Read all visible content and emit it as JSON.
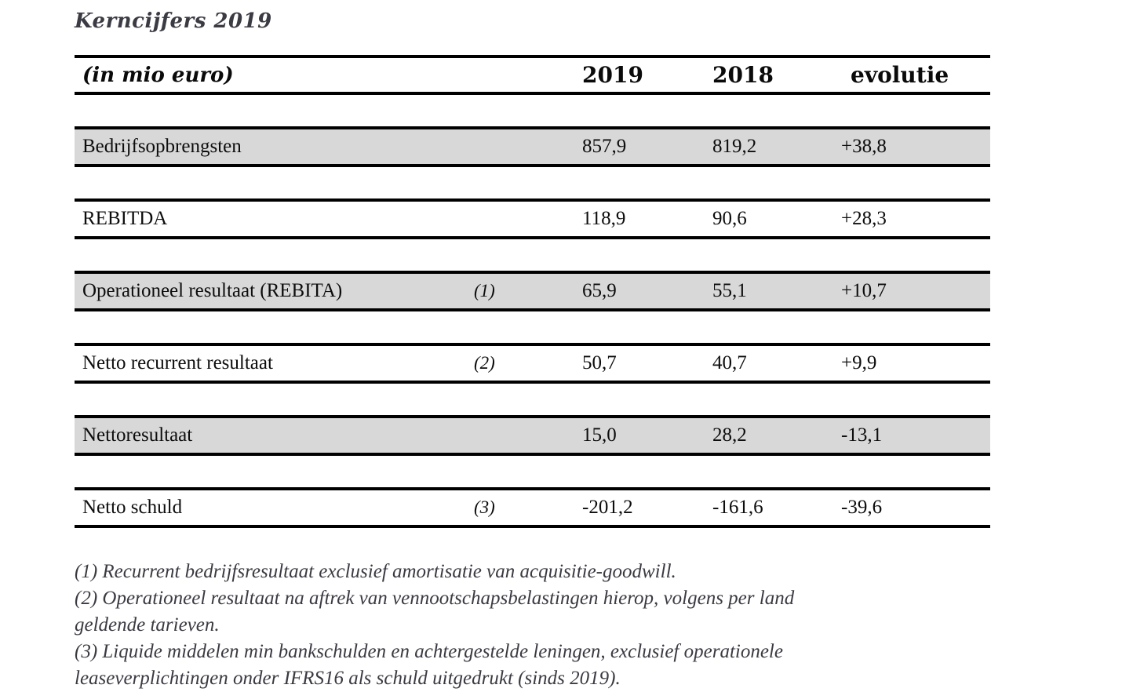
{
  "title": "Kerncijfers 2019",
  "table": {
    "unit_label": "(in mio euro)",
    "columns": [
      "2019",
      "2018",
      "evolutie"
    ],
    "rows": [
      {
        "label": "Bedrijfsopbrengsten",
        "ref": "",
        "y2019": "857,9",
        "y2018": "819,2",
        "evolutie": "+38,8",
        "shaded": true
      },
      {
        "label": "REBITDA",
        "ref": "",
        "y2019": "118,9",
        "y2018": "90,6",
        "evolutie": "+28,3",
        "shaded": false
      },
      {
        "label": "Operationeel resultaat (REBITA)",
        "ref": "(1)",
        "y2019": "65,9",
        "y2018": "55,1",
        "evolutie": "+10,7",
        "shaded": true
      },
      {
        "label": "Netto recurrent resultaat",
        "ref": "(2)",
        "y2019": "50,7",
        "y2018": "40,7",
        "evolutie": "+9,9",
        "shaded": false
      },
      {
        "label": "Nettoresultaat",
        "ref": "",
        "y2019": "15,0",
        "y2018": "28,2",
        "evolutie": "-13,1",
        "shaded": true
      },
      {
        "label": "Netto schuld",
        "ref": "(3)",
        "y2019": "-201,2",
        "y2018": "-161,6",
        "evolutie": "-39,6",
        "shaded": false
      }
    ]
  },
  "footnotes": [
    "(1) Recurrent bedrijfsresultaat exclusief amortisatie van acquisitie-goodwill.",
    "(2) Operationeel resultaat na aftrek van vennootschapsbelastingen hierop, volgens per land\ngeldende tarieven.",
    "(3) Liquide middelen min bankschulden en achtergestelde leningen, exclusief operationele\nleaseverplichtingen onder IFRS16 als schuld uitgedrukt (sinds 2019)."
  ],
  "colors": {
    "row_shade": "#d8d8d8",
    "border": "#000000",
    "muted_text": "#3a3a42"
  }
}
